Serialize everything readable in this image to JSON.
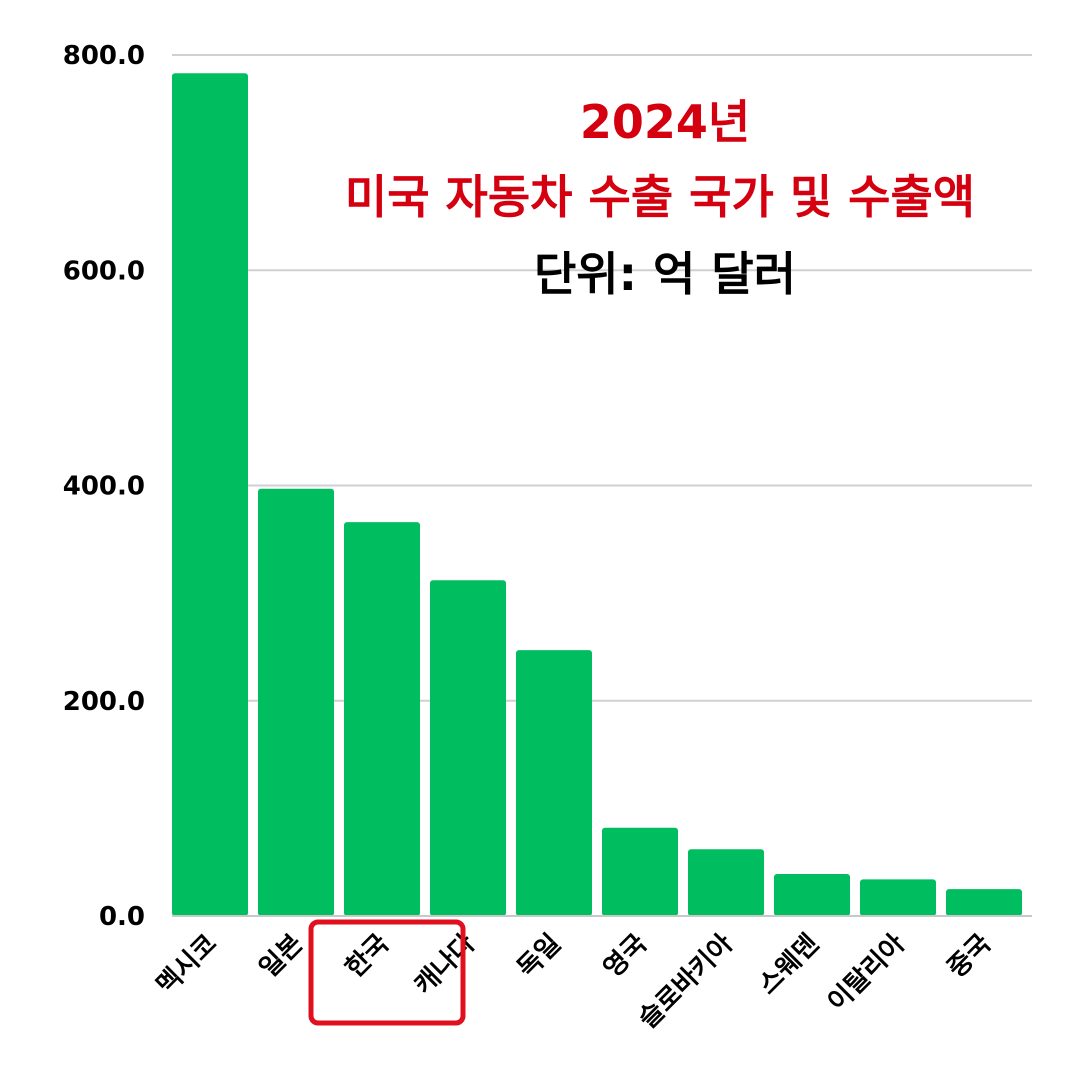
{
  "chart_data": {
    "type": "bar",
    "title_line1": "2024년",
    "title_line2": "미국 자동차 수출 국가 및 수출액",
    "unit_label": "단위: 억 달러",
    "categories": [
      "멕시코",
      "일본",
      "한국",
      "캐나다",
      "독일",
      "영국",
      "슬로바키아",
      "스웨덴",
      "이탈리아",
      "중국"
    ],
    "values": [
      783,
      397,
      366,
      312,
      247,
      82,
      62,
      39,
      34,
      25
    ],
    "y_ticks": [
      "0.0",
      "200.0",
      "400.0",
      "600.0",
      "800.0"
    ],
    "ylim": [
      0,
      800
    ],
    "grid": true,
    "highlighted_category": "한국",
    "colors": {
      "bar": "#00be60",
      "title": "#d4000f",
      "unit": "#000000",
      "grid": "#d0d0d0",
      "highlight_box": "#e0101e"
    }
  }
}
